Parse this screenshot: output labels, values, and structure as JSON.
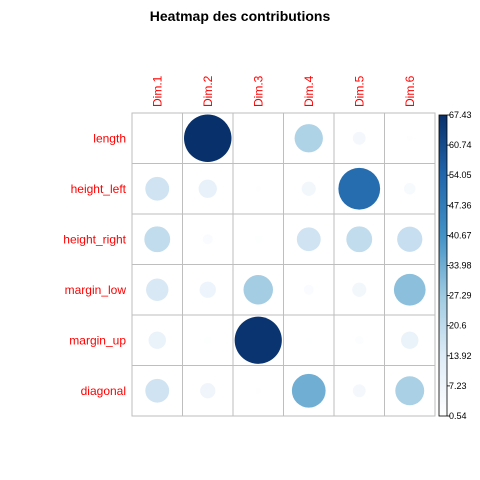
{
  "chart_data": {
    "type": "heatmap",
    "title": "Heatmap des contributions",
    "rows": [
      "length",
      "height_left",
      "height_right",
      "margin_low",
      "margin_up",
      "diagonal"
    ],
    "columns": [
      "Dim.1",
      "Dim.2",
      "Dim.3",
      "Dim.4",
      "Dim.5",
      "Dim.6"
    ],
    "values": [
      [
        0.6,
        67.4,
        0.5,
        24.0,
        5.0,
        1.0
      ],
      [
        17.0,
        10.0,
        1.0,
        6.0,
        52.0,
        4.0
      ],
      [
        20.0,
        3.0,
        1.5,
        17.0,
        20.0,
        19.0
      ],
      [
        15.0,
        8.0,
        26.0,
        3.0,
        6.0,
        30.0
      ],
      [
        9.0,
        1.5,
        66.5,
        0.8,
        2.0,
        9.0
      ],
      [
        17.0,
        7.0,
        1.0,
        34.0,
        5.0,
        25.0
      ]
    ],
    "color_scale": {
      "min": 0.54,
      "max": 67.43,
      "ticks": [
        "67.43",
        "60.74",
        "54.05",
        "47.36",
        "40.67",
        "33.98",
        "27.29",
        "20.6",
        "13.92",
        "7.23",
        "0.54"
      ],
      "colors": [
        "#ffffff",
        "#deebf7",
        "#9ecae1",
        "#4292c6",
        "#2166ac",
        "#08306b"
      ]
    },
    "label_color": "#ff0000",
    "grid_color": "#bebebe",
    "legend_position": "right"
  }
}
